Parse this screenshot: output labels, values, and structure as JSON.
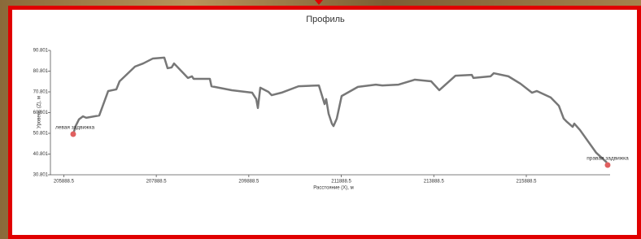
{
  "chart_data": {
    "type": "line",
    "title": "Профиль",
    "xlabel": "Расстояние (X), м",
    "ylabel": "Уровень (Z), м",
    "xlim": [
      205600,
      217700
    ],
    "ylim": [
      30.801,
      90.801
    ],
    "xticks": [
      205888.5,
      207888.5,
      209888.5,
      211888.5,
      213888.5,
      215888.5
    ],
    "yticks": [
      30.801,
      40.801,
      50.801,
      60.801,
      70.801,
      80.801,
      90.801
    ],
    "grid": false,
    "x": [
      206092,
      206145,
      206216,
      206303,
      206374,
      206655,
      206849,
      207025,
      207095,
      207429,
      207605,
      207816,
      208062,
      208133,
      208220,
      208273,
      208572,
      208660,
      208695,
      209047,
      209082,
      209522,
      209962,
      210050,
      210085,
      210137,
      210313,
      210384,
      210595,
      210964,
      211404,
      211474,
      211527,
      211562,
      211615,
      211685,
      211720,
      211791,
      211896,
      212248,
      212635,
      212775,
      213127,
      213479,
      213831,
      214007,
      214358,
      214710,
      214745,
      215116,
      215185,
      215501,
      215765,
      216011,
      216117,
      216416,
      216592,
      216697,
      216768,
      216891,
      216926,
      217049,
      217401,
      217630
    ],
    "series": [
      {
        "name": "Профиль",
        "color": "#777777",
        "values": [
          50.4,
          54.3,
          57.5,
          59.0,
          58.3,
          59.4,
          71.2,
          72.0,
          75.9,
          83.0,
          84.5,
          86.9,
          87.3,
          82.2,
          82.6,
          84.5,
          77.5,
          78.3,
          77.1,
          77.1,
          73.5,
          71.6,
          70.4,
          67.3,
          63.0,
          72.8,
          70.8,
          69.2,
          70.4,
          73.5,
          73.9,
          68.8,
          64.9,
          67.3,
          60.2,
          55.5,
          54.3,
          57.9,
          68.8,
          73.2,
          74.3,
          73.9,
          74.3,
          76.7,
          75.9,
          71.6,
          78.6,
          79.0,
          77.5,
          78.3,
          79.8,
          78.3,
          74.7,
          70.4,
          71.2,
          68.1,
          64.1,
          57.9,
          56.3,
          53.9,
          55.5,
          52.4,
          41.4,
          36.7
        ]
      }
    ],
    "annotations": [
      {
        "text": "левая задвижка",
        "x": 206092,
        "y": 50.4,
        "color": "#e06060"
      },
      {
        "text": "правая задвижка",
        "x": 217647,
        "y": 35.5,
        "color": "#e06060"
      }
    ]
  }
}
